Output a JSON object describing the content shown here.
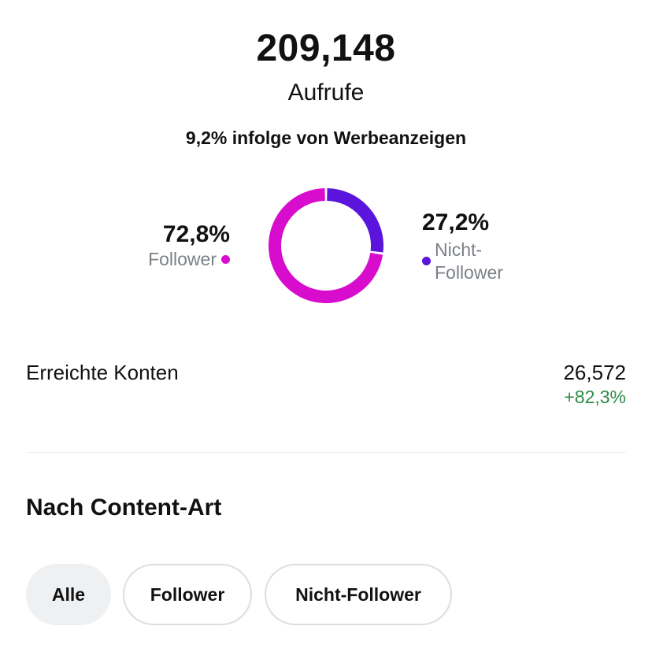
{
  "summary": {
    "views_count": "209,148",
    "views_label": "Aufrufe",
    "ads_note": "9,2% infolge von Werbeanzeigen"
  },
  "breakdown": {
    "follower": {
      "percent_label": "72,8%",
      "label": "Follower",
      "value": 0.728,
      "color": "#d70ccc"
    },
    "non_follower": {
      "percent_label": "27,2%",
      "label": "Nicht-Follower",
      "value": 0.272,
      "color": "#5a14dc"
    }
  },
  "reach": {
    "label": "Erreichte Konten",
    "value": "26,572",
    "change": "+82,3%",
    "change_color": "#2e8b46"
  },
  "content_type": {
    "title": "Nach Content-Art",
    "filters": [
      {
        "label": "Alle",
        "selected": true
      },
      {
        "label": "Follower",
        "selected": false
      },
      {
        "label": "Nicht-Follower",
        "selected": false
      }
    ]
  }
}
